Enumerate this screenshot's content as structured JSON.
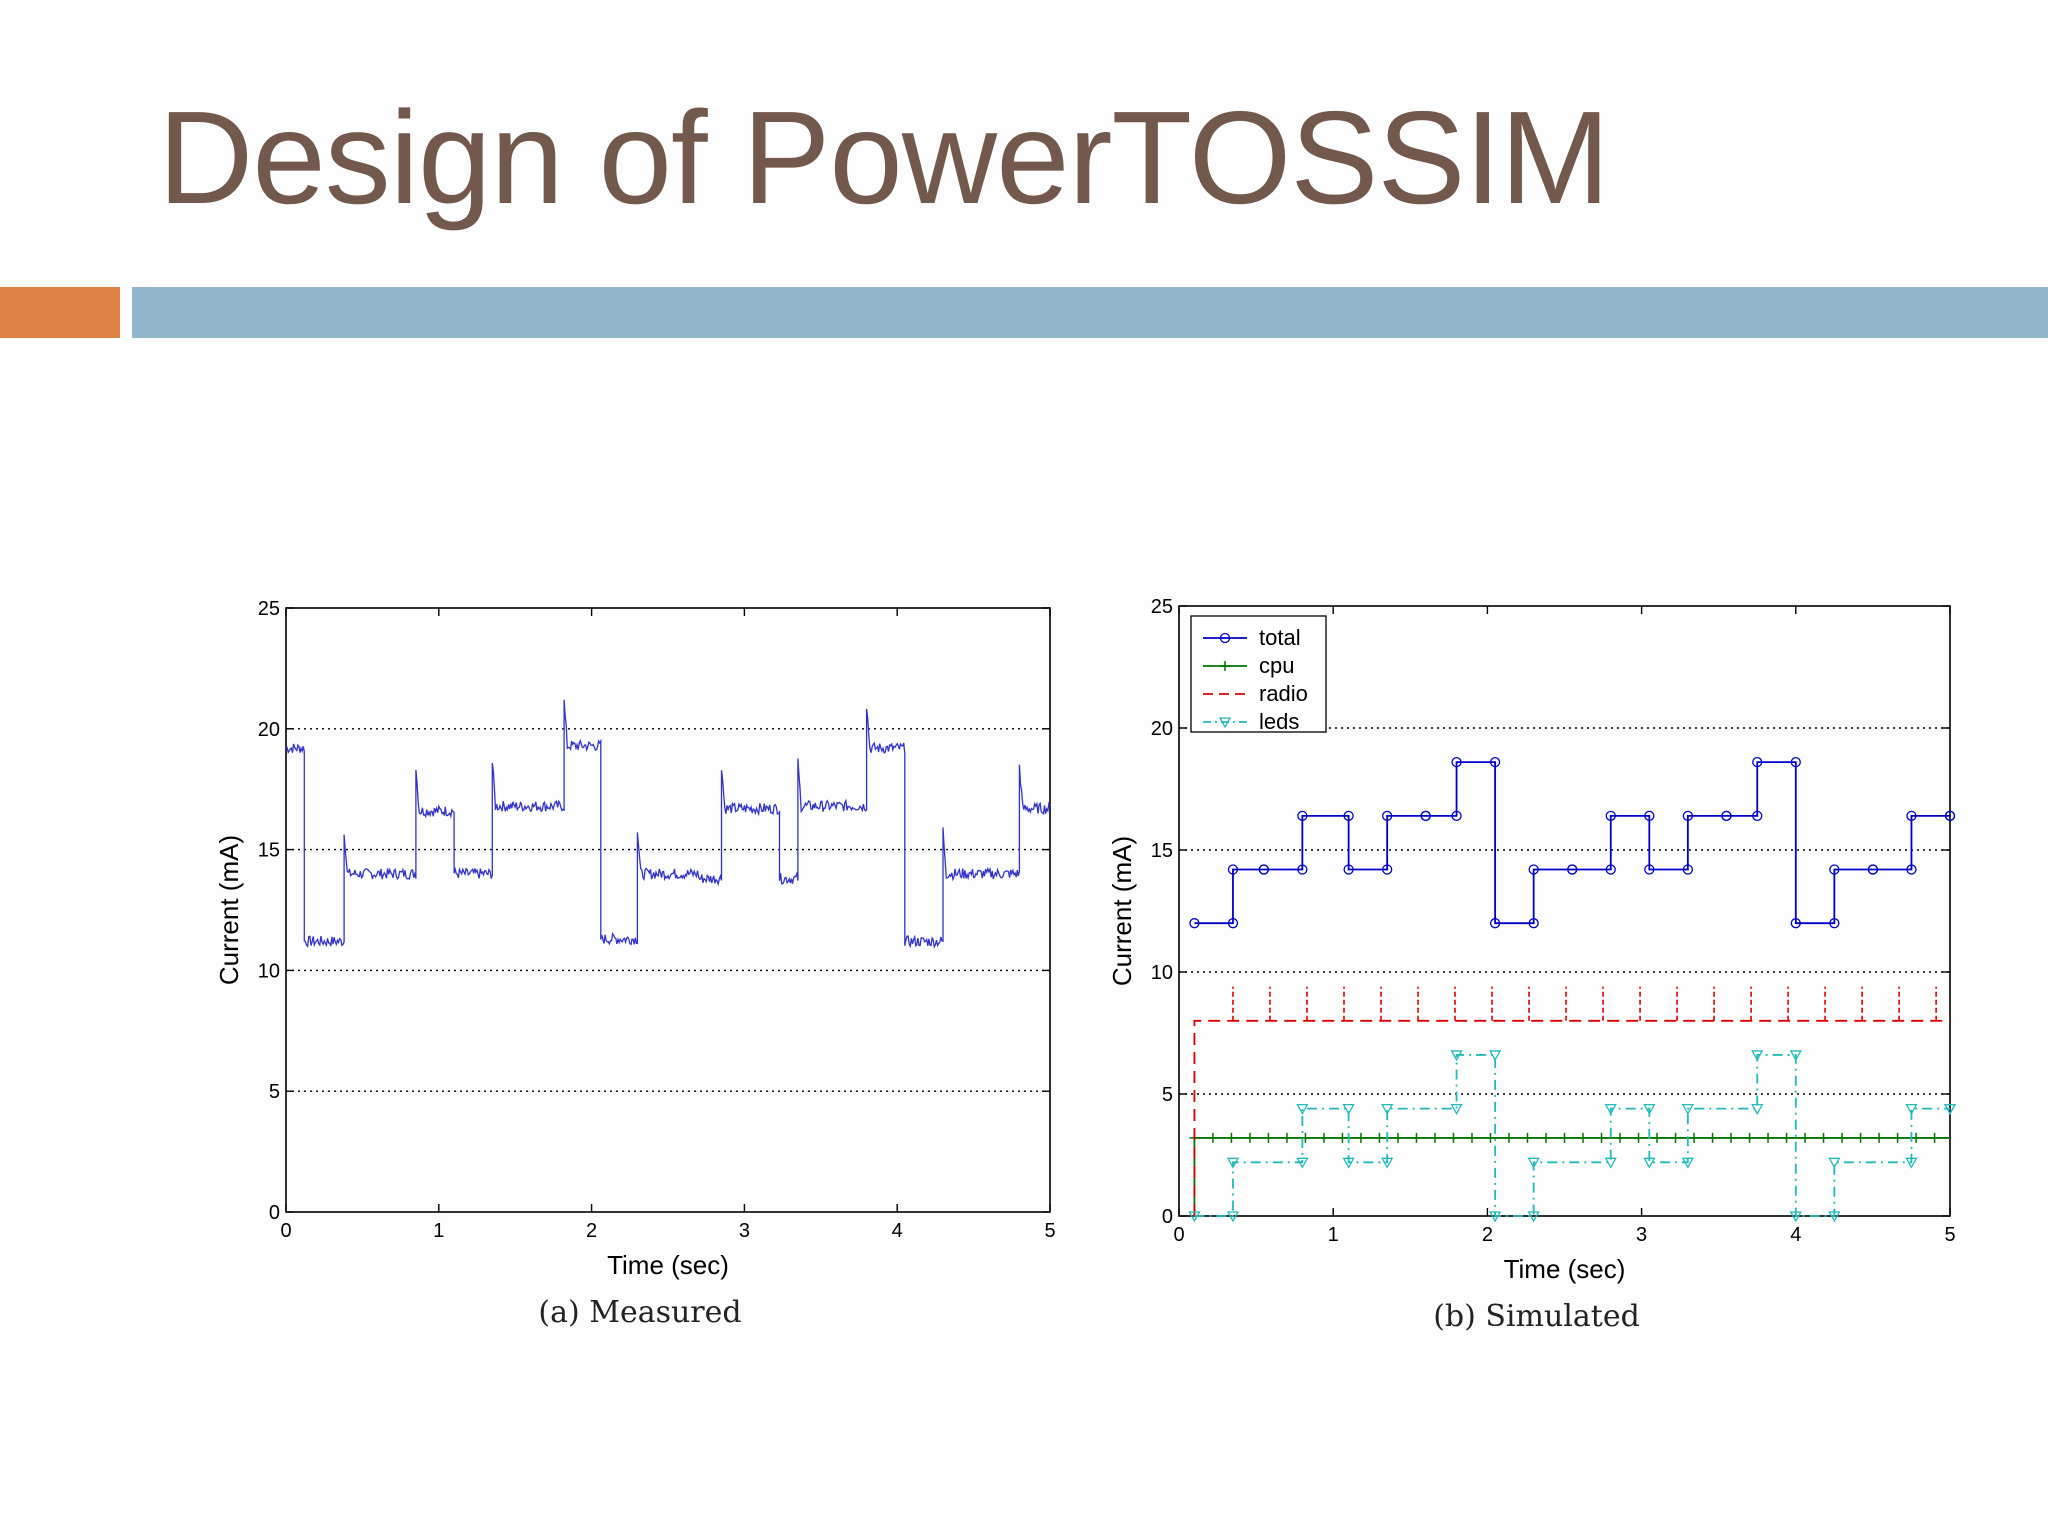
{
  "slide": {
    "title": "Design of PowerTOSSIM",
    "colors": {
      "title": "#73594c",
      "accent_orange": "#de8345",
      "accent_blue": "#94b6cd"
    }
  },
  "chart_data": [
    {
      "type": "line",
      "caption": "(a) Measured",
      "xlabel": "Time (sec)",
      "ylabel": "Current (mA)",
      "xlim": [
        0,
        5
      ],
      "ylim": [
        0,
        25
      ],
      "xticks": [
        "0",
        "1",
        "2",
        "3",
        "4",
        "5"
      ],
      "yticks": [
        "0",
        "5",
        "10",
        "15",
        "20",
        "25"
      ],
      "grid": "dotted horizontal",
      "series": [
        {
          "color": "#3333cc",
          "steps": [
            [
              0.0,
              19.2
            ],
            [
              0.12,
              11.2
            ],
            [
              0.38,
              14.0
            ],
            [
              0.85,
              16.6
            ],
            [
              1.1,
              14.0
            ],
            [
              1.35,
              16.8
            ],
            [
              1.82,
              19.3
            ],
            [
              2.06,
              11.3
            ],
            [
              2.3,
              14.0
            ],
            [
              2.7,
              13.8
            ],
            [
              2.85,
              16.7
            ],
            [
              3.23,
              13.8
            ],
            [
              3.35,
              16.8
            ],
            [
              3.8,
              19.2
            ],
            [
              4.05,
              11.2
            ],
            [
              4.3,
              14.0
            ],
            [
              4.8,
              16.7
            ],
            [
              5.0,
              16.7
            ]
          ]
        }
      ]
    },
    {
      "type": "line",
      "caption": "(b) Simulated",
      "xlabel": "Time (sec)",
      "ylabel": "Current (mA)",
      "xlim": [
        0,
        5
      ],
      "ylim": [
        0,
        25
      ],
      "xticks": [
        "0",
        "1",
        "2",
        "3",
        "4",
        "5"
      ],
      "yticks": [
        "0",
        "5",
        "10",
        "15",
        "20",
        "25"
      ],
      "grid": "dotted horizontal",
      "legend_position": "top-left",
      "series": [
        {
          "name": "total",
          "color": "#0000cc",
          "style": "solid",
          "marker": "circle",
          "steps": [
            [
              0.1,
              12.0
            ],
            [
              0.35,
              14.2
            ],
            [
              0.55,
              14.2
            ],
            [
              0.8,
              16.4
            ],
            [
              1.1,
              14.2
            ],
            [
              1.35,
              16.4
            ],
            [
              1.6,
              16.4
            ],
            [
              1.8,
              18.6
            ],
            [
              2.05,
              12.0
            ],
            [
              2.3,
              14.2
            ],
            [
              2.55,
              14.2
            ],
            [
              2.8,
              16.4
            ],
            [
              3.05,
              14.2
            ],
            [
              3.3,
              16.4
            ],
            [
              3.55,
              16.4
            ],
            [
              3.75,
              18.6
            ],
            [
              4.0,
              12.0
            ],
            [
              4.25,
              14.2
            ],
            [
              4.5,
              14.2
            ],
            [
              4.75,
              16.4
            ],
            [
              5.0,
              16.4
            ]
          ]
        },
        {
          "name": "cpu",
          "color": "#007700",
          "style": "solid",
          "marker": "plus",
          "value": 3.2
        },
        {
          "name": "radio",
          "color": "#dd0000",
          "style": "dashed",
          "marker": "none",
          "value": 8.0
        },
        {
          "name": "leds",
          "color": "#22bbbb",
          "style": "dashdot",
          "marker": "triangle",
          "steps": [
            [
              0.1,
              0.0
            ],
            [
              0.35,
              2.2
            ],
            [
              0.8,
              4.4
            ],
            [
              1.1,
              2.2
            ],
            [
              1.35,
              4.4
            ],
            [
              1.8,
              6.6
            ],
            [
              2.05,
              0.0
            ],
            [
              2.3,
              2.2
            ],
            [
              2.8,
              4.4
            ],
            [
              3.05,
              2.2
            ],
            [
              3.3,
              4.4
            ],
            [
              3.75,
              6.6
            ],
            [
              4.0,
              0.0
            ],
            [
              4.25,
              2.2
            ],
            [
              4.75,
              4.4
            ],
            [
              5.0,
              4.4
            ]
          ]
        }
      ]
    }
  ]
}
